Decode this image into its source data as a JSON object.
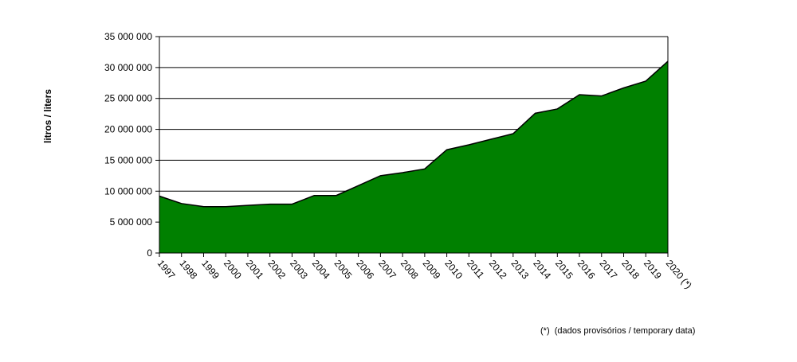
{
  "chart_data": {
    "type": "area",
    "title": "",
    "xlabel": "",
    "ylabel": "litros / liters",
    "categories": [
      "1997",
      "1998",
      "1999",
      "2000",
      "2001",
      "2002",
      "2003",
      "2004",
      "2005",
      "2006",
      "2007",
      "2008",
      "2009",
      "2010",
      "2011",
      "2012",
      "2013",
      "2014",
      "2015",
      "2016",
      "2017",
      "2018",
      "2019",
      "2020 (*)"
    ],
    "values": [
      9200000,
      8000000,
      7500000,
      7500000,
      7700000,
      7900000,
      7900000,
      9300000,
      9300000,
      10900000,
      12500000,
      13000000,
      13600000,
      16700000,
      17500000,
      18400000,
      19300000,
      22600000,
      23300000,
      25600000,
      25400000,
      26700000,
      27800000,
      31000000
    ],
    "ylim": [
      0,
      35000000
    ],
    "yticks": [
      "0",
      "5 000 000",
      "10 000 000",
      "15 000 000",
      "20 000 000",
      "25 000 000",
      "30 000 000",
      "35 000 000"
    ],
    "ytick_values": [
      0,
      5000000,
      10000000,
      15000000,
      20000000,
      25000000,
      30000000,
      35000000
    ],
    "grid": true,
    "fill_color": "#008000",
    "line_color": "#000000",
    "legend": "none"
  },
  "footnote": "(*)  (dados provisórios / temporary data)"
}
